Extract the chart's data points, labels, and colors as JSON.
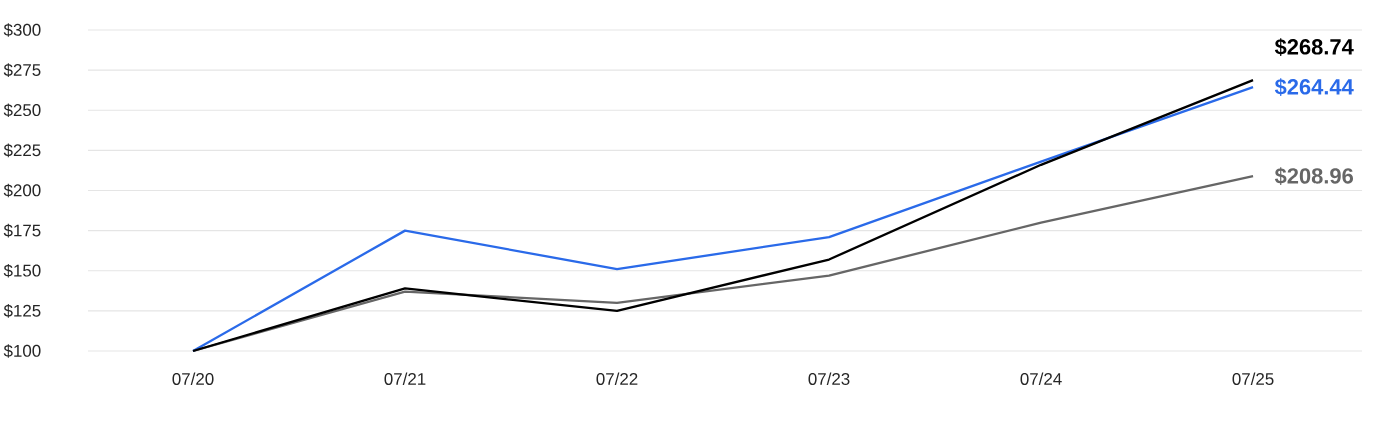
{
  "chart_data": {
    "type": "line",
    "categories": [
      "07/20",
      "07/21",
      "07/22",
      "07/23",
      "07/24",
      "07/25"
    ],
    "series": [
      {
        "color": "#666666",
        "values": [
          100,
          137,
          130,
          147,
          180,
          208.96
        ],
        "value_labels": [
          null,
          null,
          null,
          null,
          null,
          "$208.96"
        ]
      },
      {
        "color": "#2a6ae9",
        "values": [
          100,
          175,
          151,
          171,
          218,
          264.44
        ],
        "value_labels": [
          null,
          null,
          null,
          null,
          null,
          "$264.44"
        ]
      },
      {
        "color": "#000000",
        "values": [
          100,
          139,
          125,
          157,
          216,
          268.74
        ],
        "value_labels": [
          null,
          null,
          null,
          null,
          null,
          "$268.74"
        ]
      }
    ],
    "ylim": [
      100,
      300
    ],
    "yticks": [
      {
        "value": 100,
        "label": "$100"
      },
      {
        "value": 125,
        "label": "$125"
      },
      {
        "value": 150,
        "label": "$150"
      },
      {
        "value": 175,
        "label": "$175"
      },
      {
        "value": 200,
        "label": "$200"
      },
      {
        "value": 225,
        "label": "$225"
      },
      {
        "value": 250,
        "label": "$250"
      },
      {
        "value": 275,
        "label": "$275"
      },
      {
        "value": 300,
        "label": "$300"
      }
    ],
    "grid": "y",
    "marker": "none",
    "line_style": "solid"
  }
}
